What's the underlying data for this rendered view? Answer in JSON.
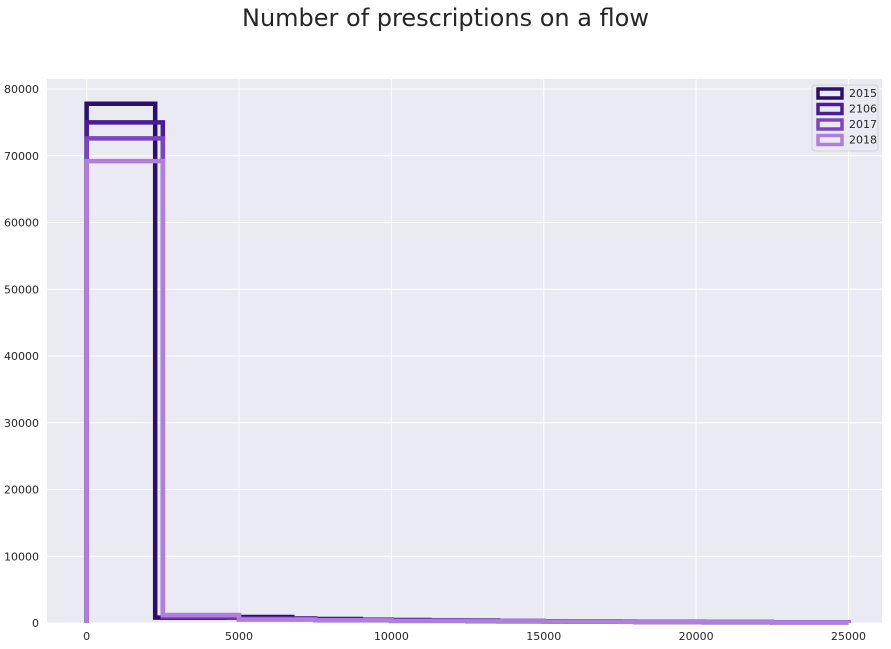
{
  "chart_data": {
    "type": "histogram",
    "title": "Number of prescriptions on a flow",
    "xlabel": "",
    "ylabel": "",
    "xlim": [
      -1300,
      26100
    ],
    "ylim": [
      0,
      81500
    ],
    "xticks": [
      0,
      5000,
      10000,
      15000,
      20000,
      25000
    ],
    "yticks": [
      0,
      10000,
      20000,
      30000,
      40000,
      50000,
      60000,
      70000,
      80000
    ],
    "grid": true,
    "legend_position": "top-right",
    "series": [
      {
        "name": "2015",
        "color": "#2a0f6b",
        "bin_edges": [
          0,
          2250,
          4500,
          6750,
          9000,
          11250,
          13500,
          15750,
          18000,
          20250,
          22500
        ],
        "values": [
          77800,
          800,
          900,
          600,
          450,
          350,
          250,
          200,
          150,
          100
        ]
      },
      {
        "name": "2106",
        "color": "#4a1c96",
        "bin_edges": [
          0,
          2500,
          5000,
          7500,
          10000,
          12500,
          15000,
          17500,
          20000,
          22500,
          25000
        ],
        "values": [
          75000,
          800,
          700,
          500,
          400,
          300,
          250,
          200,
          150,
          100
        ]
      },
      {
        "name": "2017",
        "color": "#7c44c0",
        "bin_edges": [
          0,
          2500,
          5000,
          7500,
          10000,
          12500,
          15000,
          17500,
          20000,
          22500,
          25000
        ],
        "values": [
          72600,
          1000,
          600,
          450,
          350,
          280,
          220,
          180,
          140,
          100
        ]
      },
      {
        "name": "2018",
        "color": "#b07fdc",
        "bin_edges": [
          0,
          2500,
          5000,
          7500,
          10000,
          12500,
          15000,
          17500,
          20000,
          22500,
          25000
        ],
        "values": [
          69200,
          1200,
          500,
          400,
          300,
          250,
          200,
          160,
          120,
          90
        ]
      }
    ]
  }
}
